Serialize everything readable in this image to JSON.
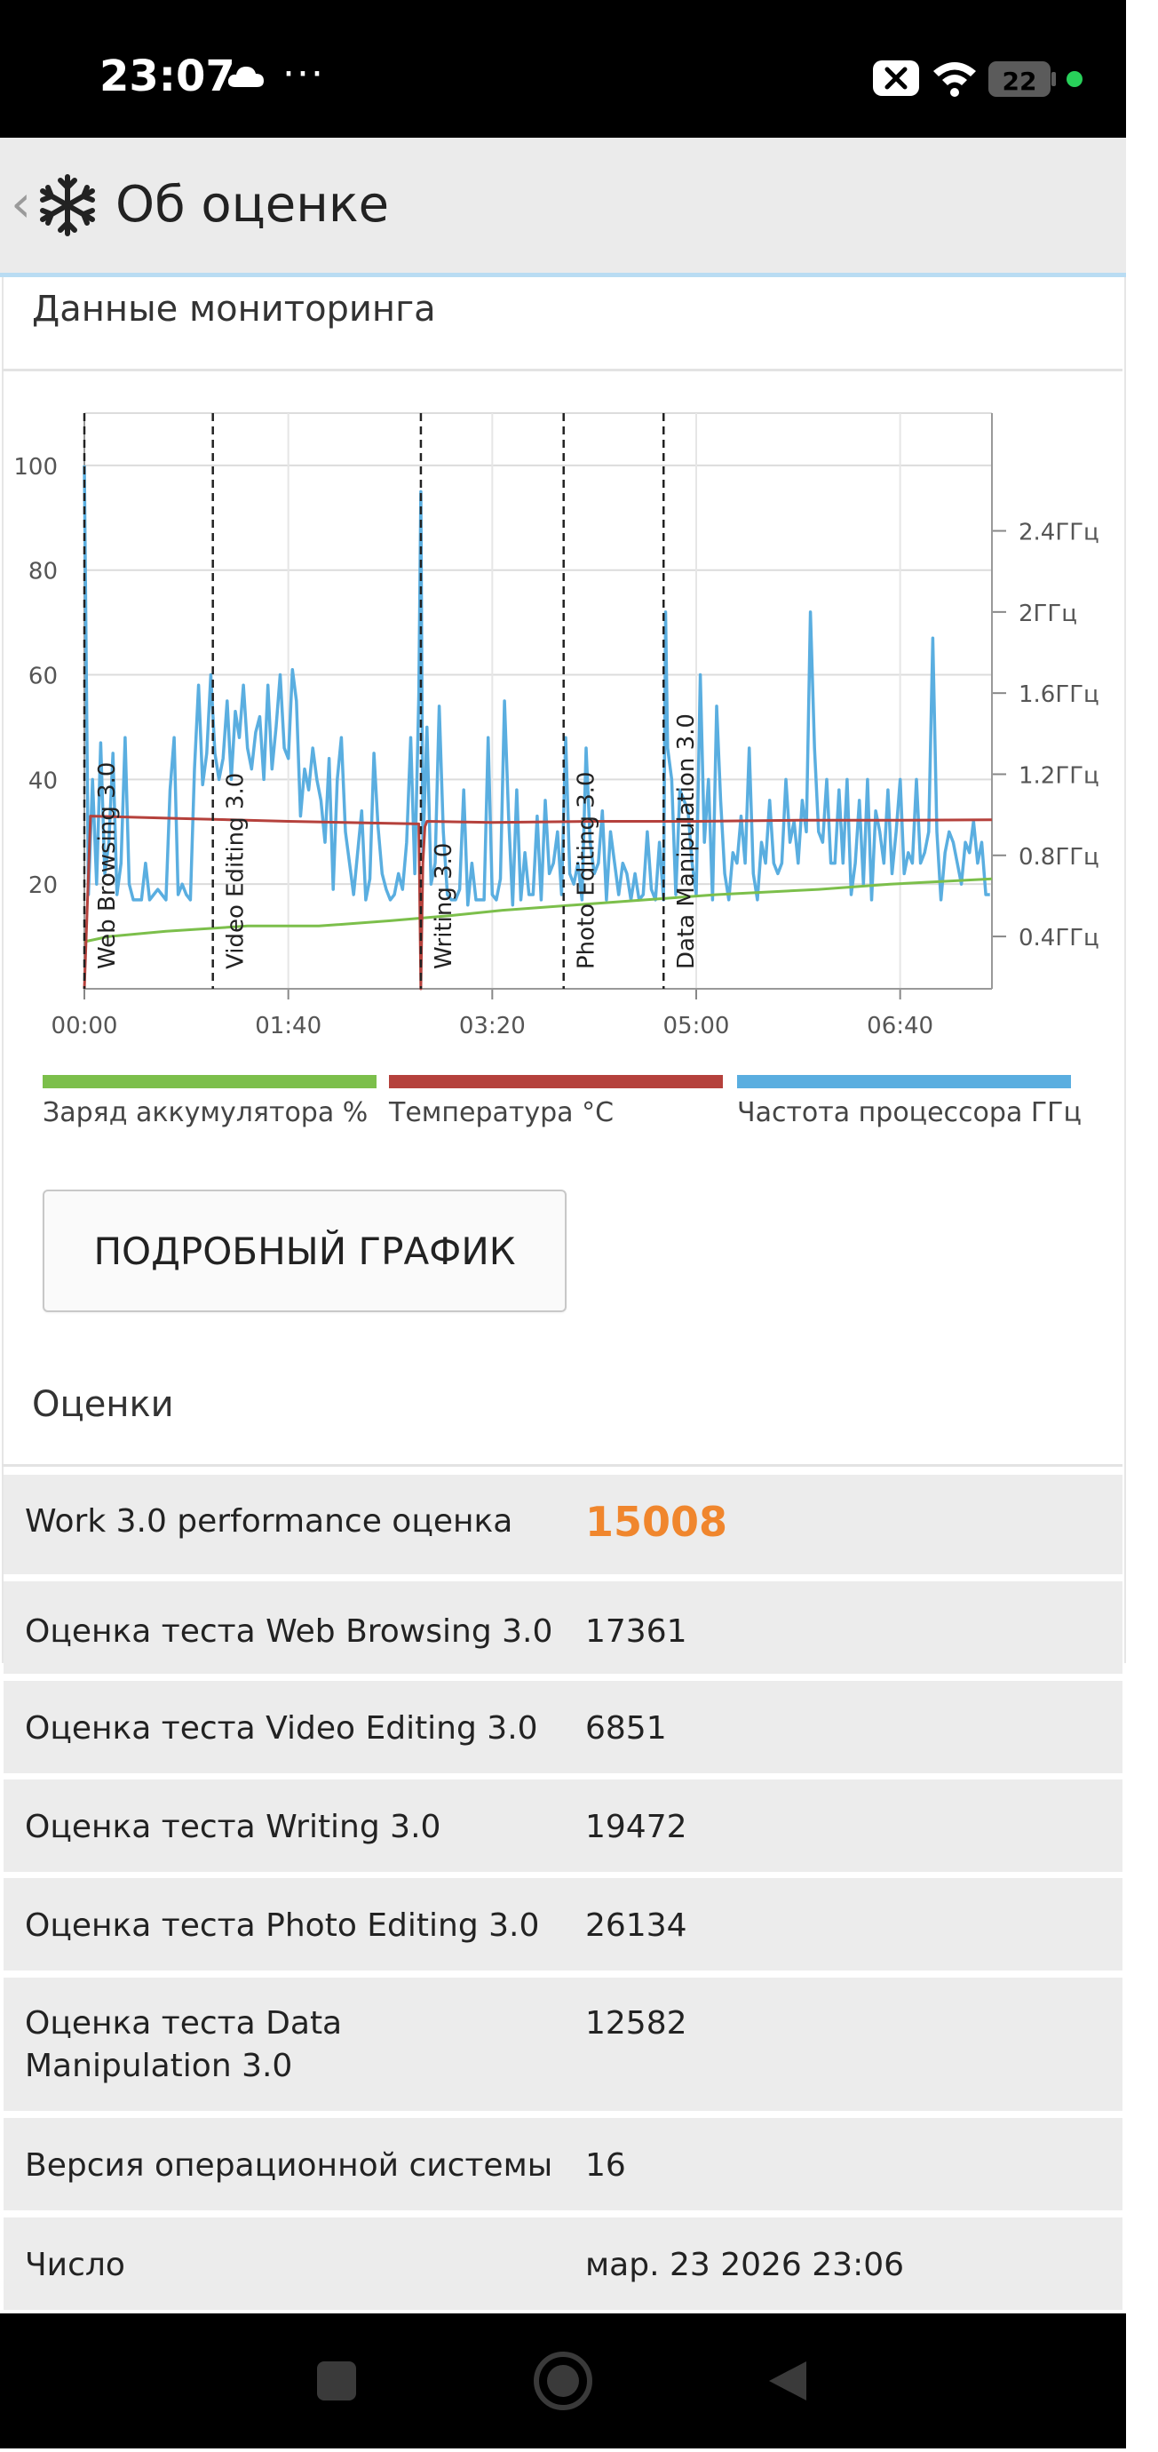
{
  "status_bar": {
    "time": "23:07",
    "dots": "···",
    "battery": "22",
    "icons": [
      "cloud-icon",
      "notification-x-icon",
      "wifi-icon",
      "battery-icon",
      "green-dot-icon"
    ]
  },
  "app_bar": {
    "title": "Об оценке",
    "back_icon": "chevron-left-icon",
    "logo_icon": "snowflake-icon"
  },
  "monitoring": {
    "heading": "Данные мониторинга"
  },
  "chart_data": {
    "type": "line",
    "x_ticks": [
      "00:00",
      "01:40",
      "03:20",
      "05:00",
      "06:40"
    ],
    "y_left_ticks": [
      "20",
      "40",
      "60",
      "80",
      "100"
    ],
    "y_right_ticks": [
      "0.4ГГц",
      "0.8ГГц",
      "1.2ГГц",
      "1.6ГГц",
      "2ГГц",
      "2.4ГГц"
    ],
    "ylim_left": [
      0,
      110
    ],
    "xlim_minutes": [
      0,
      445
    ],
    "grid": true,
    "legend_position": "bottom",
    "markers": [
      {
        "label": "Web Browsing 3.0",
        "x_min": 0
      },
      {
        "label": "Video Editing 3.0",
        "x_min": 63
      },
      {
        "label": "Writing 3.0",
        "x_min": 165
      },
      {
        "label": "Photo Editing 3.0",
        "x_min": 235
      },
      {
        "label": "Data Manipulation 3.0",
        "x_min": 284
      }
    ],
    "series": [
      {
        "name": "Заряд аккумулятора %",
        "color": "#7cbf4b",
        "x": [
          0,
          12,
          40,
          80,
          115,
          150,
          180,
          205,
          240,
          275,
          310,
          360,
          395,
          445
        ],
        "y": [
          9,
          10,
          11,
          12,
          12,
          13,
          14,
          15,
          16,
          17,
          18,
          19,
          20,
          21
        ]
      },
      {
        "name": "Температура °C",
        "color": "#b5413c",
        "x": [
          0,
          3,
          50,
          100,
          164,
          165,
          166,
          167,
          168,
          200,
          250,
          300,
          350,
          400,
          445
        ],
        "y": [
          0,
          33,
          32.5,
          32,
          31.5,
          0,
          24,
          31,
          32,
          31.8,
          32,
          32,
          32.2,
          32.2,
          32.3
        ]
      },
      {
        "name": "Частота процессора ГГц",
        "color": "#5aaee0",
        "x": [
          0,
          2,
          4,
          6,
          8,
          10,
          12,
          14,
          16,
          18,
          20,
          22,
          24,
          26,
          28,
          30,
          32,
          34,
          36,
          38,
          40,
          42,
          44,
          46,
          48,
          50,
          52,
          54,
          56,
          58,
          60,
          62,
          64,
          66,
          68,
          70,
          72,
          74,
          76,
          78,
          80,
          82,
          84,
          86,
          88,
          90,
          92,
          94,
          96,
          98,
          100,
          102,
          104,
          106,
          108,
          110,
          112,
          114,
          116,
          118,
          120,
          122,
          124,
          126,
          128,
          130,
          132,
          134,
          136,
          138,
          140,
          142,
          144,
          146,
          148,
          150,
          152,
          154,
          156,
          158,
          160,
          162,
          164,
          165,
          166,
          168,
          170,
          172,
          174,
          176,
          178,
          180,
          182,
          184,
          186,
          188,
          190,
          192,
          194,
          196,
          198,
          200,
          202,
          204,
          206,
          208,
          210,
          212,
          214,
          216,
          218,
          220,
          222,
          224,
          226,
          228,
          230,
          232,
          234,
          236,
          238,
          240,
          242,
          244,
          246,
          248,
          250,
          252,
          254,
          256,
          258,
          260,
          262,
          264,
          266,
          268,
          270,
          272,
          274,
          276,
          278,
          280,
          282,
          284,
          285,
          286,
          288,
          290,
          292,
          294,
          296,
          298,
          300,
          302,
          304,
          306,
          308,
          310,
          312,
          314,
          316,
          318,
          320,
          322,
          324,
          326,
          328,
          330,
          332,
          334,
          336,
          338,
          340,
          342,
          344,
          346,
          348,
          350,
          352,
          354,
          356,
          358,
          360,
          362,
          364,
          366,
          368,
          370,
          372,
          374,
          376,
          378,
          380,
          382,
          384,
          386,
          388,
          390,
          392,
          394,
          396,
          398,
          400,
          402,
          404,
          406,
          408,
          410,
          412,
          414,
          416,
          418,
          420,
          422,
          424,
          426,
          428,
          430,
          432,
          434,
          436,
          438,
          440,
          442,
          444
        ],
        "y": [
          100,
          18,
          40,
          20,
          47,
          22,
          28,
          45,
          18,
          24,
          48,
          20,
          17,
          17,
          17,
          24,
          17,
          18,
          19,
          18,
          17,
          38,
          48,
          18,
          20,
          18,
          17,
          42,
          58,
          39,
          45,
          60,
          45,
          40,
          44,
          55,
          40,
          53,
          48,
          58,
          46,
          42,
          49,
          52,
          40,
          58,
          42,
          50,
          60,
          46,
          44,
          61,
          55,
          33,
          42,
          38,
          46,
          40,
          36,
          28,
          44,
          19,
          40,
          48,
          30,
          24,
          18,
          26,
          34,
          17,
          21,
          45,
          31,
          22,
          19,
          17,
          18,
          22,
          19,
          28,
          48,
          22,
          56,
          95,
          26,
          50,
          20,
          24,
          54,
          30,
          18,
          17,
          17,
          19,
          38,
          16,
          24,
          17,
          17,
          17,
          48,
          18,
          17,
          21,
          55,
          33,
          16,
          38,
          17,
          26,
          18,
          18,
          33,
          17,
          36,
          22,
          24,
          30,
          18,
          48,
          22,
          20,
          24,
          17,
          46,
          28,
          22,
          24,
          34,
          17,
          30,
          24,
          18,
          24,
          22,
          17,
          22,
          17,
          18,
          30,
          19,
          17,
          28,
          17,
          72,
          46,
          40,
          18,
          38,
          36,
          34,
          24,
          18,
          60,
          28,
          40,
          17,
          54,
          36,
          22,
          17,
          26,
          24,
          33,
          24,
          46,
          22,
          17,
          28,
          24,
          36,
          24,
          22,
          24,
          40,
          28,
          32,
          24,
          36,
          30,
          72,
          46,
          30,
          28,
          40,
          24,
          24,
          38,
          24,
          40,
          18,
          24,
          36,
          20,
          40,
          17,
          34,
          30,
          24,
          38,
          22,
          30,
          40,
          22,
          26,
          24,
          40,
          24,
          26,
          30,
          67,
          30,
          17,
          26,
          30,
          28,
          24,
          20,
          28,
          26,
          32,
          24,
          28,
          18,
          18
        ]
      }
    ]
  },
  "detail_button": {
    "label": "ПОДРОБНЫЙ ГРАФИК"
  },
  "scores": {
    "heading": "Оценки",
    "rows": [
      {
        "label": "Work 3.0 performance оценка",
        "value": "15008"
      },
      {
        "label": "Оценка теста Web Browsing 3.0",
        "value": "17361"
      },
      {
        "label": "Оценка теста Video Editing 3.0",
        "value": "6851"
      },
      {
        "label": "Оценка теста Writing 3.0",
        "value": "19472"
      },
      {
        "label": "Оценка теста Photo Editing 3.0",
        "value": "26134"
      },
      {
        "label": "Оценка теста Data Manipulation 3.0",
        "value": "12582"
      },
      {
        "label": "Версия операционной системы",
        "value": "16"
      },
      {
        "label": "Число",
        "value": "мар. 23 2026 23:06"
      }
    ]
  },
  "nav_bar": {
    "icons": [
      "square-nav-icon",
      "circle-nav-icon",
      "back-triangle-nav-icon"
    ]
  }
}
